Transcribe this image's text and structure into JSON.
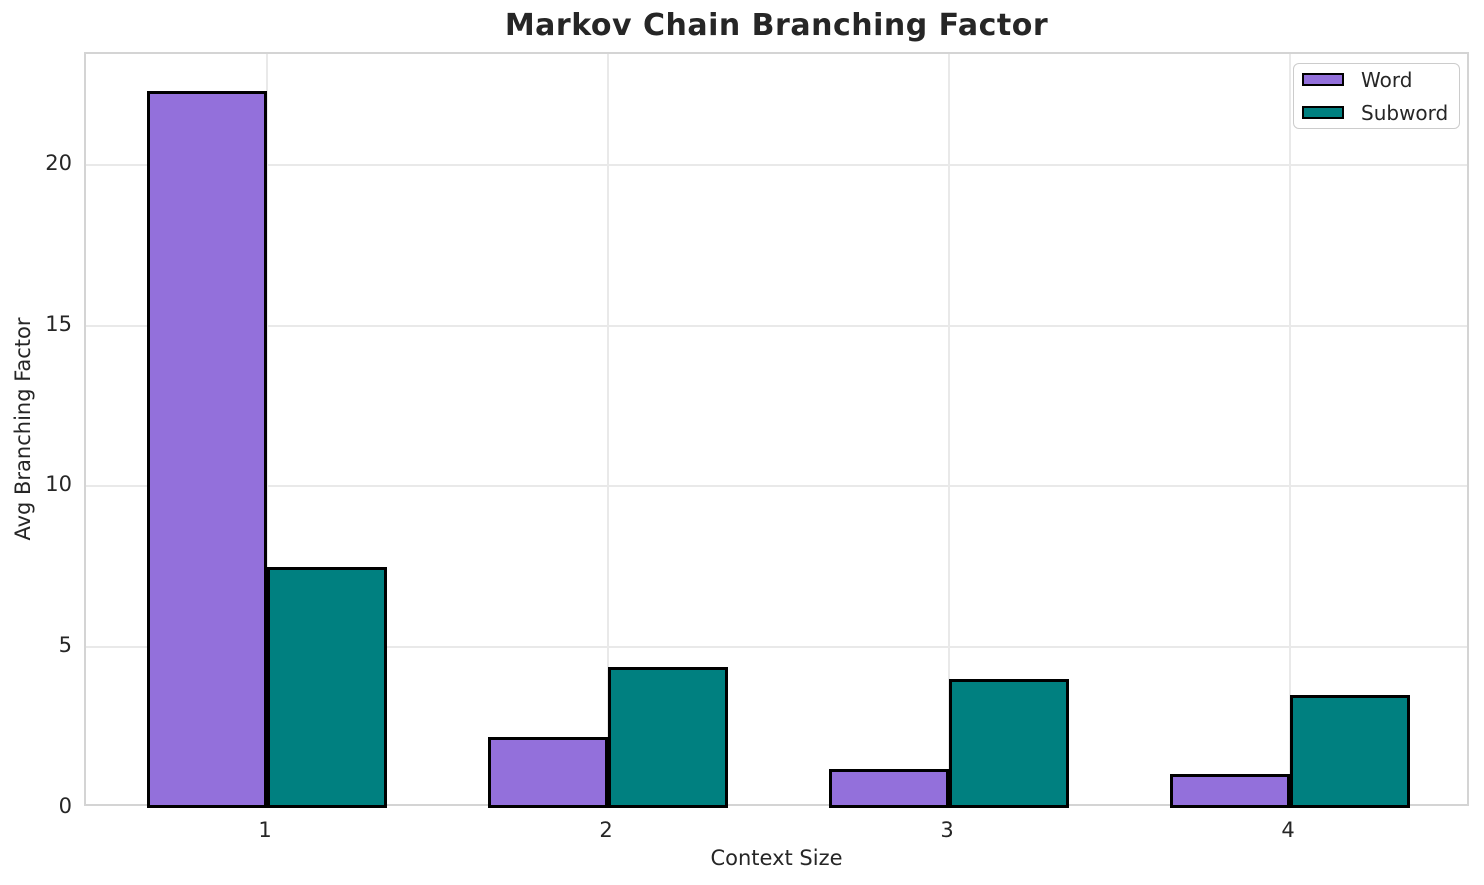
{
  "chart_data": {
    "type": "bar",
    "title": "Markov Chain Branching Factor",
    "xlabel": "Context Size",
    "ylabel": "Avg Branching Factor",
    "categories": [
      "1",
      "2",
      "3",
      "4"
    ],
    "series": [
      {
        "name": "Word",
        "color": "#9370DB",
        "values": [
          22.3,
          2.2,
          1.2,
          1.05
        ]
      },
      {
        "name": "Subword",
        "color": "#008080",
        "values": [
          7.5,
          4.4,
          4.0,
          3.5
        ]
      }
    ],
    "ylim": [
      0,
      23.45
    ],
    "yticks": [
      0,
      5,
      10,
      15,
      20
    ],
    "grid": true,
    "legend_position": "upper right",
    "bar_edge_color": "#000000",
    "text_color": "#262626",
    "grid_color": "#e9e9e9",
    "spine_color": "#d4d4d4"
  }
}
